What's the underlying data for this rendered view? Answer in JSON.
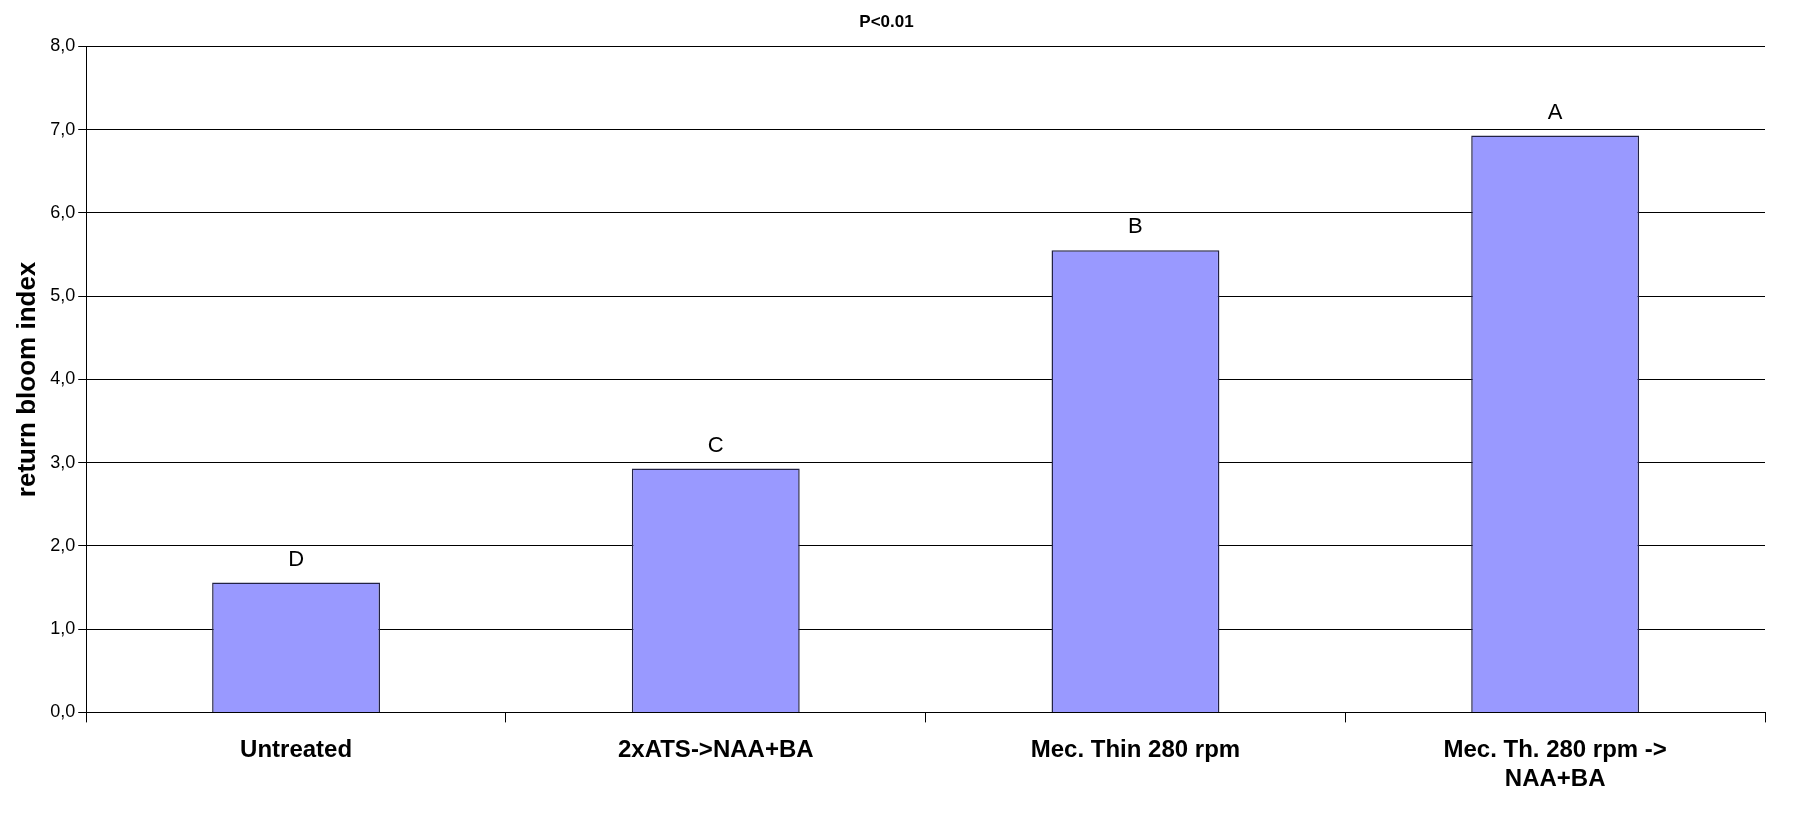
{
  "chart_data": {
    "type": "bar",
    "title": "P<0.01",
    "ylabel": "return bloom index",
    "categories": [
      "Untreated",
      "2xATS->NAA+BA",
      "Mec. Thin 280 rpm",
      "Mec. Th. 280 rpm -> NAA+BA"
    ],
    "values": [
      1.56,
      2.93,
      5.55,
      6.93
    ],
    "color": "#9999ff",
    "ylim": [
      0,
      8
    ],
    "yticks": [
      {
        "value": 0,
        "label": "0,0"
      },
      {
        "value": 1,
        "label": "1,0"
      },
      {
        "value": 2,
        "label": "2,0"
      },
      {
        "value": 3,
        "label": "3,0"
      },
      {
        "value": 4,
        "label": "4,0"
      },
      {
        "value": 5,
        "label": "5,0"
      },
      {
        "value": 6,
        "label": "6,0"
      },
      {
        "value": 7,
        "label": "7,0"
      },
      {
        "value": 8,
        "label": "8,0"
      }
    ],
    "grid": "y",
    "legend": false,
    "annotations": [
      {
        "text": "D",
        "x": "Untreated",
        "y": 1.56
      },
      {
        "text": "C",
        "x": "2xATS->NAA+BA",
        "y": 2.93
      },
      {
        "text": "B",
        "x": "Mec. Thin 280 rpm",
        "y": 5.55
      },
      {
        "text": "A",
        "x": "Mec. Th. 280 rpm -> NAA+BA",
        "y": 6.93
      }
    ]
  }
}
